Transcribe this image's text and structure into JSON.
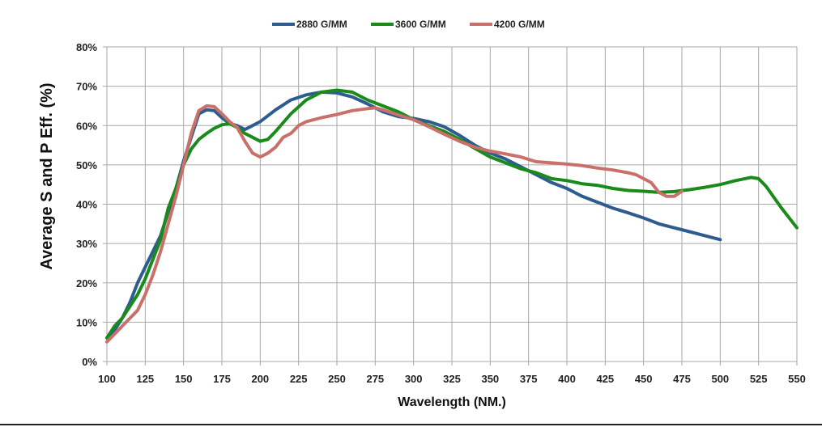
{
  "chart_data": {
    "type": "line",
    "title": "",
    "xlabel": "Wavelength (NM.)",
    "ylabel": "Average S and P Eff. (%)",
    "xlim": [
      100,
      550
    ],
    "ylim": [
      0,
      80
    ],
    "grid": true,
    "legend_position": "top-center",
    "x_ticks": [
      100,
      125,
      150,
      175,
      200,
      225,
      250,
      275,
      300,
      325,
      350,
      375,
      400,
      425,
      450,
      475,
      500,
      525,
      550
    ],
    "x_tick_labels": [
      "100",
      "125",
      "150",
      "175",
      "200",
      "225",
      "250",
      "275",
      "300",
      "325",
      "350",
      "375",
      "400",
      "425",
      "450",
      "475",
      "500",
      "525",
      "550"
    ],
    "y_ticks": [
      0,
      10,
      20,
      30,
      40,
      50,
      60,
      70,
      80
    ],
    "y_tick_labels": [
      "0%",
      "10%",
      "20%",
      "30%",
      "40%",
      "50%",
      "60%",
      "70%",
      "80%"
    ],
    "series": [
      {
        "name": "2880 G/MM",
        "color": "#2e5c8f",
        "x": [
          100,
          105,
          110,
          115,
          120,
          125,
          130,
          135,
          140,
          145,
          150,
          155,
          160,
          165,
          170,
          175,
          180,
          185,
          190,
          195,
          200,
          210,
          220,
          230,
          240,
          250,
          260,
          270,
          280,
          290,
          300,
          310,
          320,
          330,
          340,
          350,
          360,
          370,
          380,
          390,
          400,
          410,
          420,
          430,
          440,
          450,
          460,
          470,
          480,
          490,
          500
        ],
        "y": [
          6,
          8,
          11,
          15,
          20,
          24,
          28,
          32,
          38,
          44,
          51,
          57,
          63,
          64,
          63.8,
          62,
          60.5,
          60,
          59,
          60,
          61,
          64,
          66.5,
          67.8,
          68.5,
          68.3,
          67.3,
          65.5,
          63.5,
          62.3,
          61.8,
          61,
          59.7,
          57.5,
          55,
          53,
          51.5,
          49.5,
          47.5,
          45.5,
          44,
          42,
          40.5,
          39,
          37.8,
          36.5,
          35,
          34,
          33,
          32,
          31
        ]
      },
      {
        "name": "3600 G/MM",
        "color": "#1a8a1a",
        "x": [
          100,
          105,
          110,
          115,
          120,
          125,
          130,
          135,
          140,
          145,
          150,
          155,
          160,
          165,
          170,
          175,
          180,
          185,
          190,
          195,
          200,
          205,
          210,
          220,
          230,
          240,
          250,
          260,
          270,
          280,
          290,
          300,
          310,
          320,
          330,
          340,
          350,
          360,
          370,
          380,
          390,
          400,
          410,
          420,
          430,
          440,
          450,
          460,
          470,
          480,
          490,
          500,
          510,
          520,
          525,
          530,
          540,
          550
        ],
        "y": [
          6,
          9,
          11,
          14,
          17,
          21,
          26,
          31,
          39,
          44,
          50,
          54,
          56.5,
          58,
          59.3,
          60.2,
          60.5,
          59.5,
          58,
          57,
          56,
          56.5,
          58.5,
          63,
          66.5,
          68.5,
          69,
          68.5,
          66.5,
          65,
          63.5,
          61.5,
          60,
          58.5,
          56.5,
          54.2,
          52,
          50.5,
          49,
          48,
          46.5,
          46,
          45.2,
          44.8,
          44,
          43.5,
          43.3,
          43,
          43.2,
          43.7,
          44.3,
          45,
          46,
          46.8,
          46.5,
          44.5,
          39,
          34
        ]
      },
      {
        "name": "4200 G/MM",
        "color": "#c9706a",
        "x": [
          100,
          105,
          110,
          115,
          120,
          125,
          130,
          135,
          140,
          145,
          150,
          155,
          160,
          165,
          170,
          175,
          180,
          185,
          190,
          195,
          200,
          205,
          210,
          215,
          220,
          225,
          230,
          240,
          250,
          260,
          270,
          275,
          280,
          290,
          300,
          310,
          320,
          330,
          340,
          350,
          360,
          370,
          380,
          390,
          400,
          410,
          420,
          430,
          440,
          445,
          450,
          455,
          460,
          465,
          470,
          475
        ],
        "y": [
          5,
          7,
          9,
          11,
          13,
          17,
          22,
          28,
          35,
          42,
          50,
          58,
          63.8,
          65,
          64.8,
          63,
          61,
          59.5,
          56,
          53,
          52,
          53,
          54.5,
          57,
          58,
          60,
          61,
          62,
          62.8,
          63.8,
          64.3,
          64.5,
          64,
          62.7,
          61.5,
          59.7,
          57.8,
          56,
          54.5,
          53.5,
          52.8,
          52,
          50.8,
          50.5,
          50.2,
          49.8,
          49.2,
          48.7,
          48,
          47.5,
          46.5,
          45.5,
          43,
          42,
          42,
          43.3
        ]
      }
    ]
  }
}
